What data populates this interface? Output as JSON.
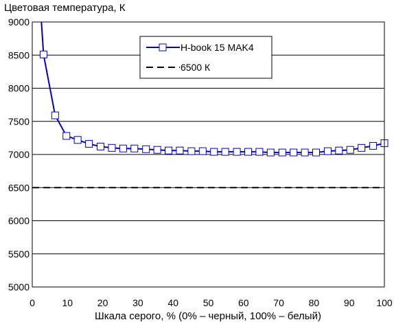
{
  "chart_data": {
    "type": "line",
    "title": "",
    "ylabel": "Цветовая температура, К",
    "xlabel": "Шкала серого, % (0% – черный, 100% – белый)",
    "xlim": [
      0,
      100
    ],
    "ylim": [
      5000,
      9000
    ],
    "x_ticks": [
      0,
      10,
      20,
      30,
      40,
      50,
      60,
      70,
      80,
      90,
      100
    ],
    "y_ticks": [
      5000,
      5500,
      6000,
      6500,
      7000,
      7500,
      8000,
      8500,
      9000
    ],
    "grid": "horizontal",
    "legend_position": "top-center",
    "series": [
      {
        "name": "H-book 15 MAK4",
        "color": "#0000c0",
        "marker": "square",
        "x": [
          3.2,
          6.5,
          9.7,
          12.9,
          16.1,
          19.4,
          22.6,
          25.8,
          29.0,
          32.3,
          35.5,
          38.7,
          41.9,
          45.2,
          48.4,
          51.6,
          54.8,
          58.1,
          61.3,
          64.5,
          67.7,
          71.0,
          74.2,
          77.4,
          80.6,
          83.9,
          87.1,
          90.3,
          93.5,
          96.8,
          100
        ],
        "y": [
          8510,
          7590,
          7280,
          7220,
          7160,
          7120,
          7100,
          7090,
          7090,
          7080,
          7070,
          7060,
          7060,
          7050,
          7050,
          7040,
          7040,
          7040,
          7040,
          7040,
          7030,
          7030,
          7030,
          7030,
          7030,
          7050,
          7060,
          7070,
          7100,
          7130,
          7170
        ],
        "line_start": [
          2.6,
          9000
        ]
      },
      {
        "name": "6500 К",
        "color": "#000000",
        "style": "dashed",
        "x": [
          0,
          100
        ],
        "y": [
          6500,
          6500
        ]
      }
    ]
  }
}
